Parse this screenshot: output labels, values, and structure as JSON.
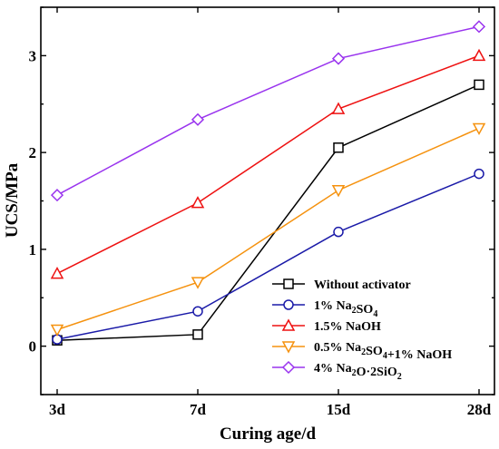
{
  "chart_data": {
    "type": "line",
    "xlabel": "Curing age/d",
    "ylabel": "UCS/MPa",
    "categories": [
      "3d",
      "7d",
      "15d",
      "28d"
    ],
    "ylim": [
      -0.5,
      3.5
    ],
    "yticks": [
      0,
      1,
      2,
      3
    ],
    "grid": false,
    "legend_position": "bottom-right",
    "series": [
      {
        "name": "Without activator",
        "name_parts": [
          {
            "t": "Without activator"
          }
        ],
        "color": "#000000",
        "marker": "square",
        "values": [
          0.06,
          0.12,
          2.05,
          2.7
        ]
      },
      {
        "name": "1% Na2SO4",
        "name_parts": [
          {
            "t": "1% Na"
          },
          {
            "t": "2",
            "sub": true
          },
          {
            "t": "SO"
          },
          {
            "t": "4",
            "sub": true
          }
        ],
        "color": "#1a1aa8",
        "marker": "circle",
        "values": [
          0.07,
          0.36,
          1.18,
          1.78
        ]
      },
      {
        "name": "1.5% NaOH",
        "name_parts": [
          {
            "t": "1.5% NaOH"
          }
        ],
        "color": "#ee1111",
        "marker": "triangle-up",
        "values": [
          0.75,
          1.48,
          2.45,
          3.0
        ]
      },
      {
        "name": "0.5% Na2SO4+1% NaOH",
        "name_parts": [
          {
            "t": "0.5% Na"
          },
          {
            "t": "2",
            "sub": true
          },
          {
            "t": "SO"
          },
          {
            "t": "4",
            "sub": true
          },
          {
            "t": "+1% NaOH"
          }
        ],
        "color": "#f5920f",
        "marker": "triangle-down",
        "values": [
          0.17,
          0.66,
          1.61,
          2.25
        ]
      },
      {
        "name": "4% Na2O·2SiO2",
        "name_parts": [
          {
            "t": "4% Na"
          },
          {
            "t": "2",
            "sub": true
          },
          {
            "t": "O·2SiO"
          },
          {
            "t": "2",
            "sub": true
          }
        ],
        "color": "#9933ee",
        "marker": "diamond",
        "values": [
          1.56,
          2.34,
          2.97,
          3.3
        ]
      }
    ]
  }
}
